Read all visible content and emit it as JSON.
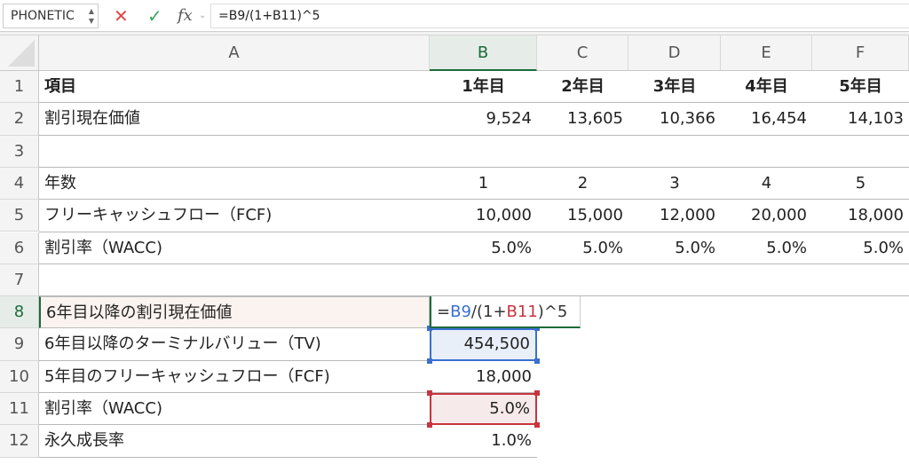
{
  "formula_bar": {
    "name_box": "PHONETIC",
    "cancel_icon": "x-icon",
    "enter_icon": "check-icon",
    "fx_label": "fx",
    "formula": "=B9/(1+B11)^5"
  },
  "columns": [
    "A",
    "B",
    "C",
    "D",
    "E",
    "F"
  ],
  "selected_column": "B",
  "selected_row": "8",
  "rows": [
    {
      "n": "1",
      "cells": [
        "項目",
        "1年目",
        "2年目",
        "3年目",
        "4年目",
        "5年目"
      ],
      "style": "header"
    },
    {
      "n": "2",
      "cells": [
        "割引現在価値",
        "9,524",
        "13,605",
        "10,366",
        "16,454",
        "14,103"
      ]
    },
    {
      "n": "3",
      "cells": [
        "",
        "",
        "",
        "",
        "",
        ""
      ]
    },
    {
      "n": "4",
      "cells": [
        "年数",
        "1",
        "2",
        "3",
        "4",
        "5"
      ],
      "style": "center"
    },
    {
      "n": "5",
      "cells": [
        "フリーキャッシュフロー（FCF)",
        "10,000",
        "15,000",
        "12,000",
        "20,000",
        "18,000"
      ]
    },
    {
      "n": "6",
      "cells": [
        "割引率（WACC)",
        "5.0%",
        "5.0%",
        "5.0%",
        "5.0%",
        "5.0%"
      ]
    },
    {
      "n": "7",
      "cells": [
        "",
        "",
        "",
        "",
        "",
        ""
      ]
    },
    {
      "n": "8",
      "cells": [
        "6年目以降の割引現在価値",
        "",
        "",
        "",
        "",
        ""
      ]
    },
    {
      "n": "9",
      "cells": [
        "6年目以降のターミナルバリュー（TV)",
        "454,500",
        "",
        "",
        "",
        ""
      ]
    },
    {
      "n": "10",
      "cells": [
        "5年目のフリーキャッシュフロー（FCF)",
        "18,000",
        "",
        "",
        "",
        ""
      ]
    },
    {
      "n": "11",
      "cells": [
        "割引率（WACC)",
        "5.0%",
        "",
        "",
        "",
        ""
      ]
    },
    {
      "n": "12",
      "cells": [
        "永久成長率",
        "1.0%",
        "",
        "",
        "",
        ""
      ]
    }
  ],
  "editing_cell": {
    "parts": [
      {
        "t": "=",
        "c": "#333333"
      },
      {
        "t": "B9",
        "c": "#3a6fd0"
      },
      {
        "t": "/(1+",
        "c": "#333333"
      },
      {
        "t": "B11",
        "c": "#c8343e"
      },
      {
        "t": ")^5",
        "c": "#333333"
      }
    ]
  },
  "colors": {
    "accent": "#1d6b3a",
    "ref_blue": "#3a6fd0",
    "ref_red": "#c8343e",
    "cancel": "#e0454a",
    "enter": "#3aa55c"
  }
}
